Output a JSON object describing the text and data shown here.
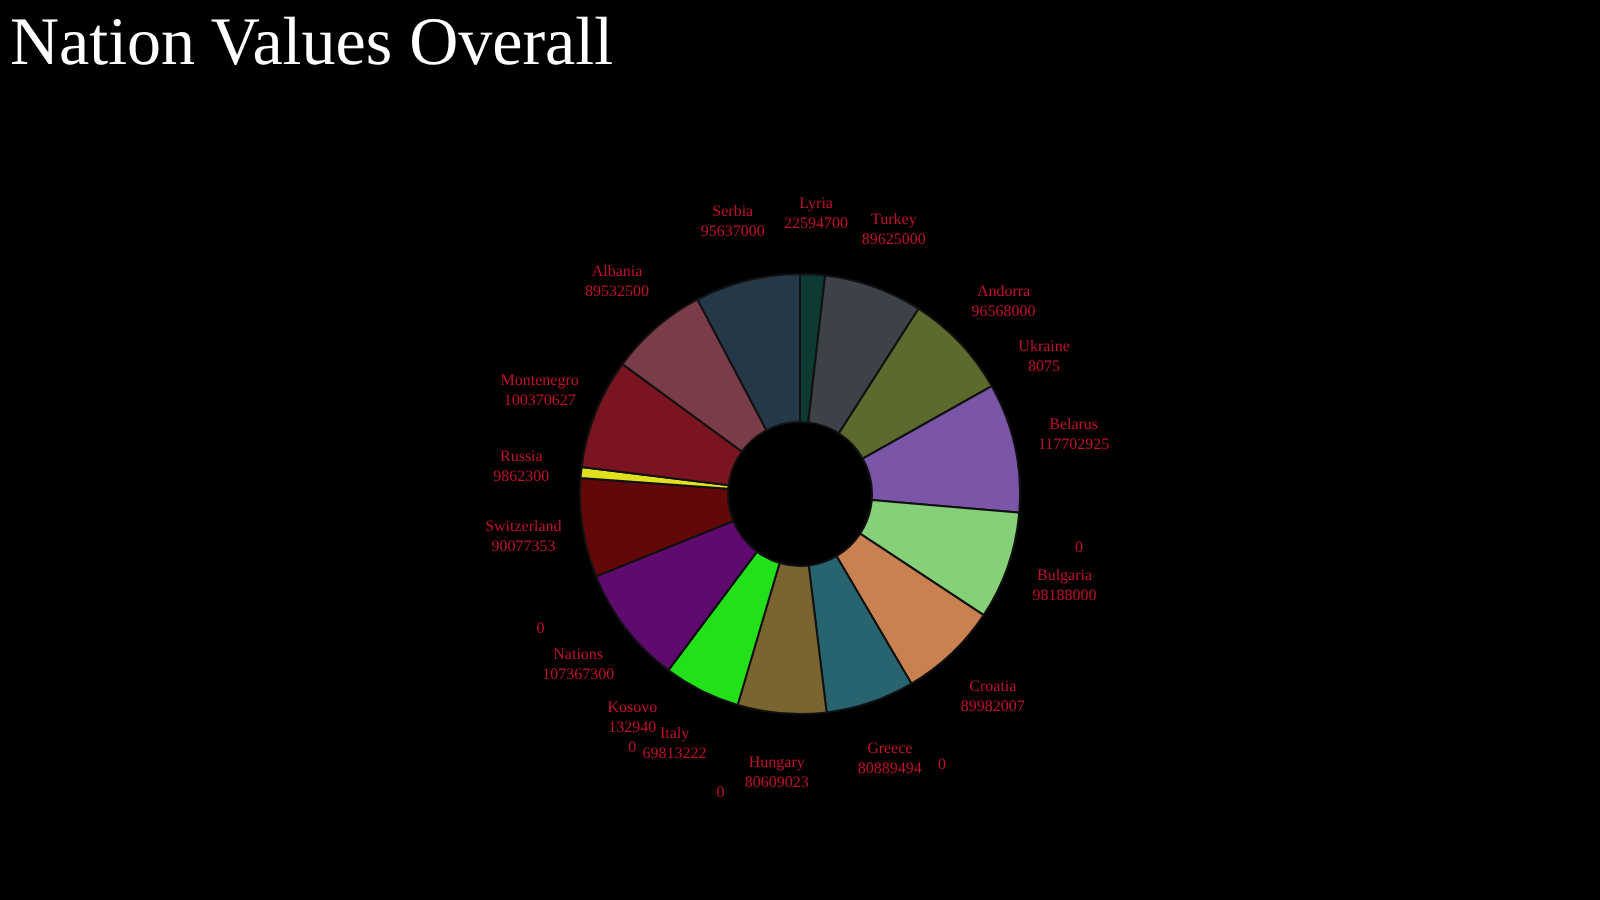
{
  "chart_data": {
    "type": "donut",
    "title": "Nation Values Overall",
    "categories": [
      "Lyria",
      "Turkey",
      "Andorra",
      "Ukraine",
      "Belarus",
      null,
      "Bulgaria",
      "Croatia",
      null,
      "Greece",
      "Hungary",
      null,
      "Italy",
      "Kosovo",
      null,
      "Nations",
      null,
      "Switzerland",
      "Russia",
      "Montenegro",
      "Albania",
      "Serbia"
    ],
    "values": [
      22594700,
      89625000,
      96568000,
      8075,
      117702925,
      0,
      98188000,
      89982007,
      0,
      80889494,
      80609023,
      0,
      69813222,
      132940,
      0,
      107367300,
      0,
      90077353,
      9862300,
      100370627,
      89532500,
      95637000
    ],
    "colors": [
      "#0d3b33",
      "#3d4249",
      "#5c6a2e",
      "#8a8a8a",
      "#7a55a8",
      "#444444",
      "#86d07a",
      "#c8814f",
      "#444444",
      "#286370",
      "#7a6530",
      "#444444",
      "#22e01a",
      "#aaaaaa",
      "#444444",
      "#5e0a6e",
      "#444444",
      "#620808",
      "#e0e020",
      "#7a1420",
      "#7a3c48",
      "#253848"
    ],
    "value_labels": [
      "22594700",
      "89625000",
      "96568000",
      "8075",
      "117702925",
      "0",
      "98188000",
      "89982007",
      "0",
      "80889494",
      "80609023",
      "0",
      "69813222",
      "132940",
      "0",
      "107367300",
      "0",
      "90077353",
      "9862300",
      "100370627",
      "89532500",
      "95637000"
    ],
    "legend": false
  }
}
